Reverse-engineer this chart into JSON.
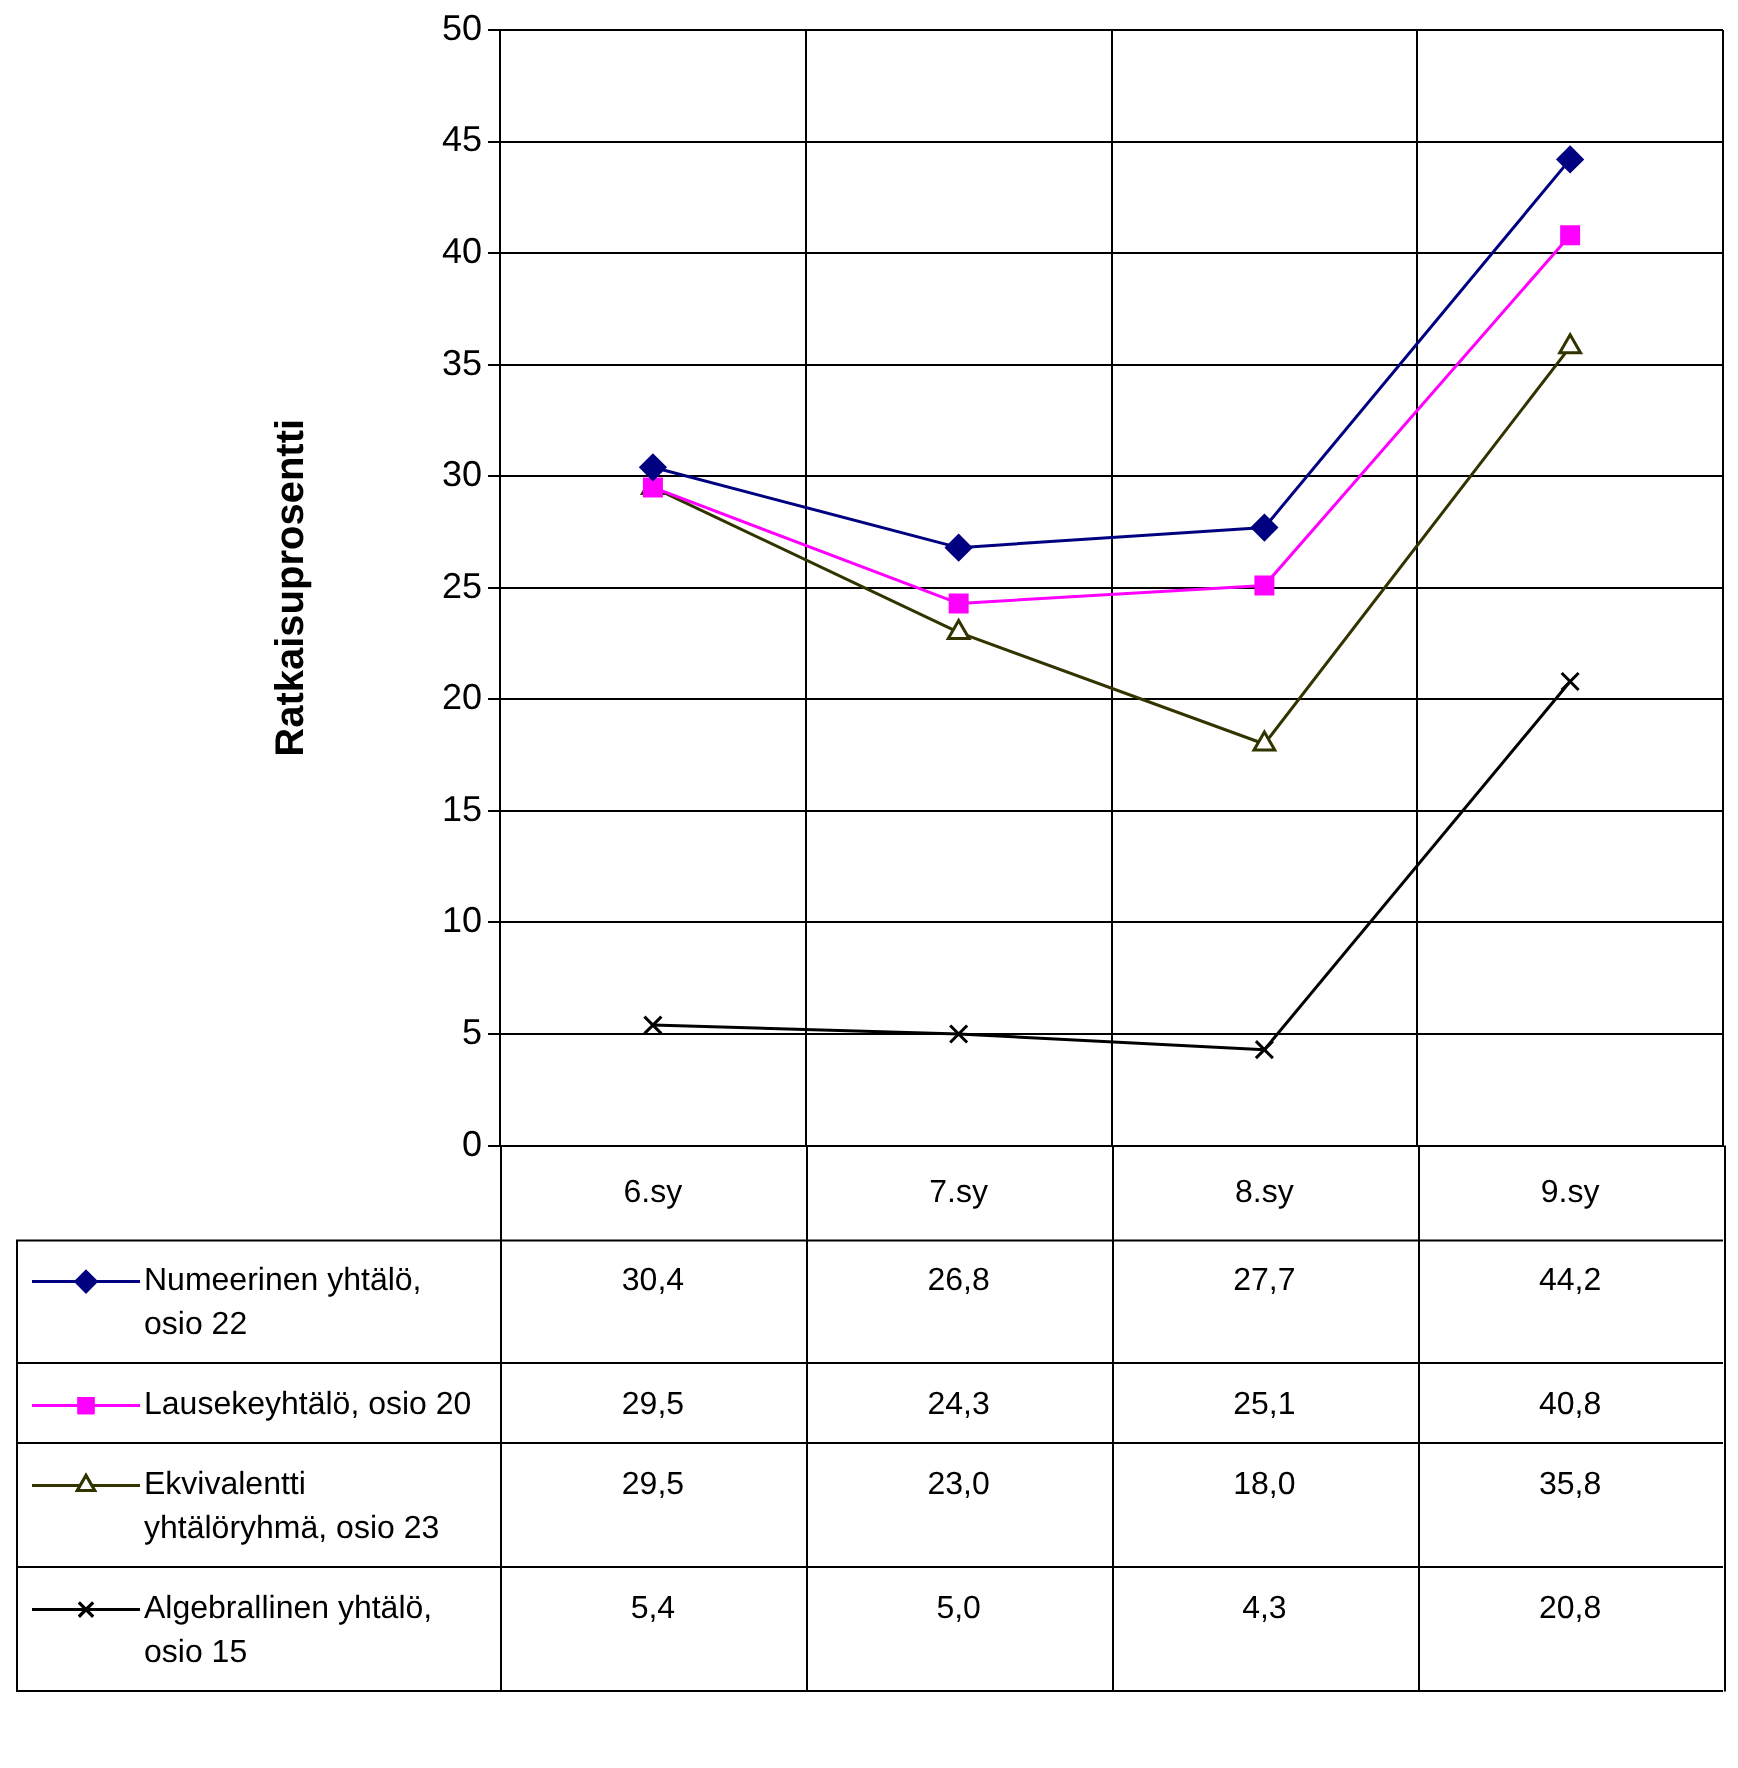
{
  "chart_data": {
    "type": "line",
    "ylabel": "Ratkaisuprosentti",
    "categories": [
      "6.sy",
      "7.sy",
      "8.sy",
      "9.sy"
    ],
    "ylim": [
      0,
      50
    ],
    "yticks": [
      0,
      5,
      10,
      15,
      20,
      25,
      30,
      35,
      40,
      45,
      50
    ],
    "grid": true,
    "legend": "bottom",
    "series": [
      {
        "name": "Numeerinen yhtälö, osio 22",
        "color": "#000080",
        "marker": "diamond",
        "values": [
          30.4,
          26.8,
          27.7,
          44.2
        ],
        "value_labels": [
          "30,4",
          "26,8",
          "27,7",
          "44,2"
        ]
      },
      {
        "name": "Lausekeyhtälö, osio 20",
        "color": "#ff00ff",
        "marker": "square",
        "values": [
          29.5,
          24.3,
          25.1,
          40.8
        ],
        "value_labels": [
          "29,5",
          "24,3",
          "25,1",
          "40,8"
        ]
      },
      {
        "name": "Ekvivalentti yhtälöryhmä, osio 23",
        "color": "#333300",
        "marker": "triangle",
        "values": [
          29.5,
          23.0,
          18.0,
          35.8
        ],
        "value_labels": [
          "29,5",
          "23,0",
          "18,0",
          "35,8"
        ]
      },
      {
        "name": "Algebrallinen yhtälö, osio 15",
        "color": "#000000",
        "marker": "cross",
        "values": [
          5.4,
          5.0,
          4.3,
          20.8
        ],
        "value_labels": [
          "5,4",
          "5,0",
          "4,3",
          "20,8"
        ]
      }
    ]
  }
}
